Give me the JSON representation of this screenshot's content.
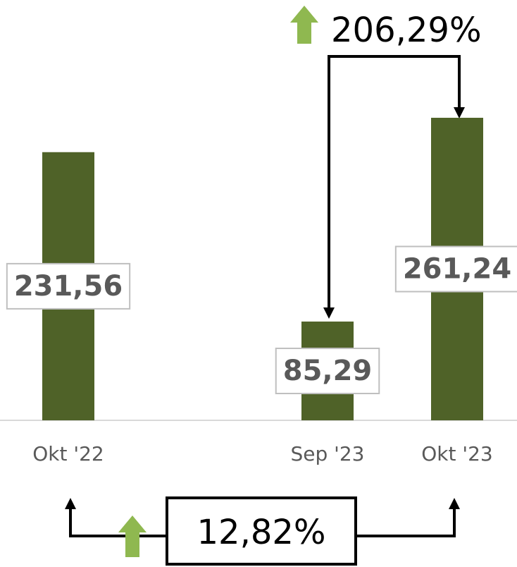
{
  "chart_data": {
    "type": "bar",
    "categories": [
      "Okt '22",
      null,
      "Sep '23",
      "Okt '23"
    ],
    "values": [
      231.56,
      null,
      85.29,
      261.24
    ],
    "value_labels": [
      "231,56",
      null,
      "85,29",
      "261,24"
    ],
    "color": "#4f6228",
    "ylim": [
      0,
      285
    ],
    "annotations": [
      {
        "text": "206,29%"
      },
      {
        "text": "12,82%"
      }
    ]
  }
}
